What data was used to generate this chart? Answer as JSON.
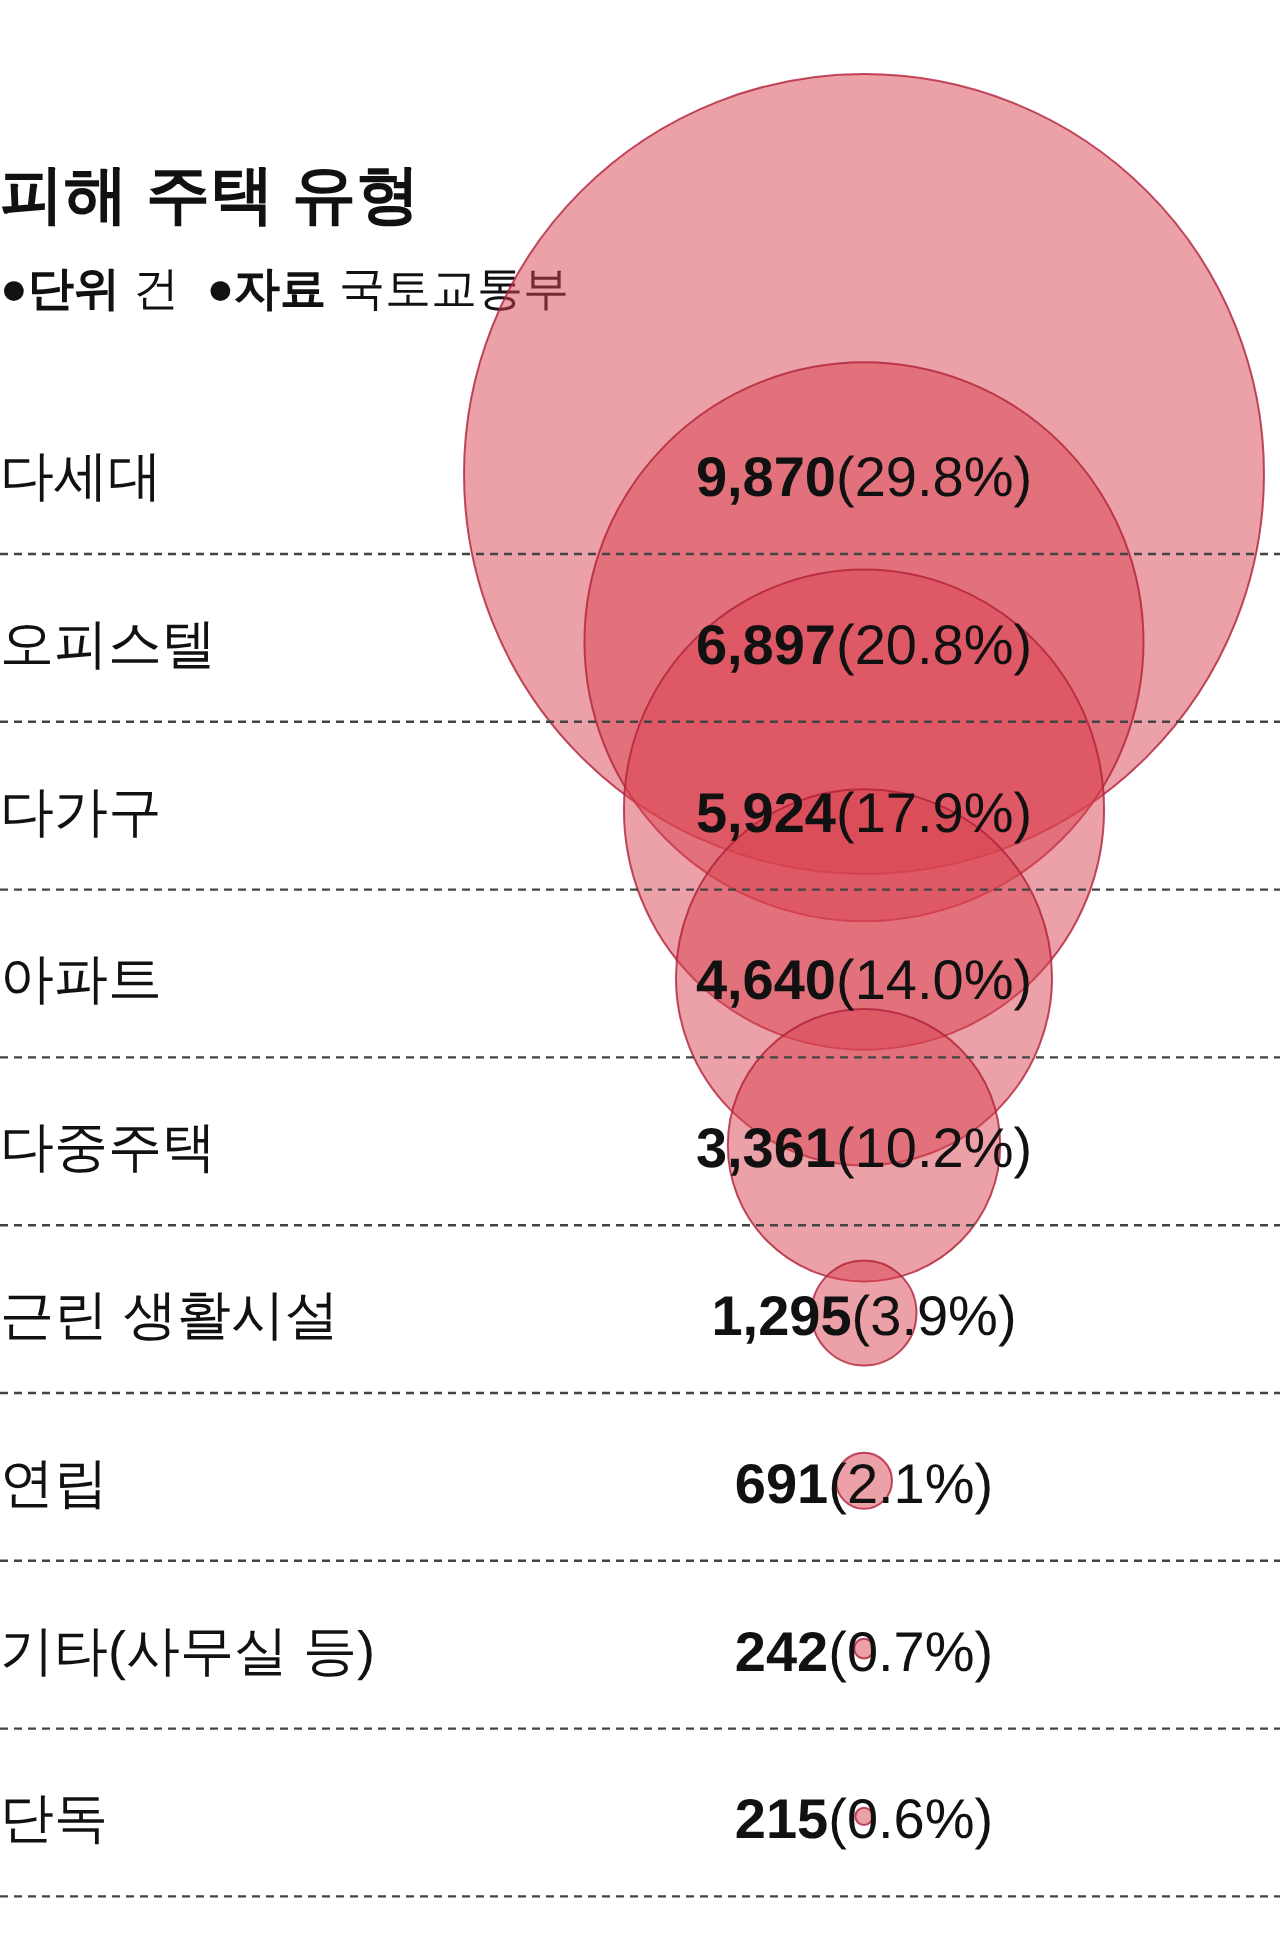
{
  "chart_data": {
    "type": "other",
    "title": "피해 주택 유형",
    "subtitle": "●단위 건  ●자료 국토교통부",
    "categories": [
      "다세대",
      "오피스텔",
      "다가구",
      "아파트",
      "다중주택",
      "근린 생활시설",
      "연립",
      "기타(사무실 등)",
      "단독"
    ],
    "values": [
      9870,
      6897,
      5924,
      4640,
      3361,
      1295,
      691,
      242,
      215
    ],
    "value_labels": [
      "9,870(29.8%)",
      "6,897(20.8%)",
      "5,924(17.9%)",
      "4,640(14.0%)",
      "3,361(10.2%)",
      "1,295(3.9%)",
      "691(2.1%)",
      "242(0.7%)",
      "215(0.6%)"
    ],
    "color": "#d9414f"
  }
}
